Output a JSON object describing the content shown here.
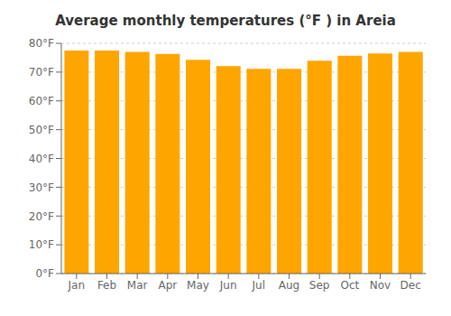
{
  "chart_data": {
    "type": "bar",
    "title": "Average monthly temperatures (°F ) in Areia",
    "categories": [
      "Jan",
      "Feb",
      "Mar",
      "Apr",
      "May",
      "Jun",
      "Jul",
      "Aug",
      "Sep",
      "Oct",
      "Nov",
      "Dec"
    ],
    "values": [
      77.5,
      77.5,
      77.0,
      76.3,
      74.3,
      72.1,
      71.1,
      71.1,
      74.0,
      75.7,
      76.5,
      77.0
    ],
    "color": "#FFA500",
    "ylim": [
      0,
      80
    ],
    "yticks": [
      {
        "value": 0,
        "label": "0°F"
      },
      {
        "value": 10,
        "label": "10°F"
      },
      {
        "value": 20,
        "label": "20°F"
      },
      {
        "value": 30,
        "label": "30°F"
      },
      {
        "value": 40,
        "label": "40°F"
      },
      {
        "value": 50,
        "label": "50°F"
      },
      {
        "value": 60,
        "label": "60°F"
      },
      {
        "value": 70,
        "label": "70°F"
      },
      {
        "value": 80,
        "label": "80°F"
      }
    ],
    "grid": true
  }
}
